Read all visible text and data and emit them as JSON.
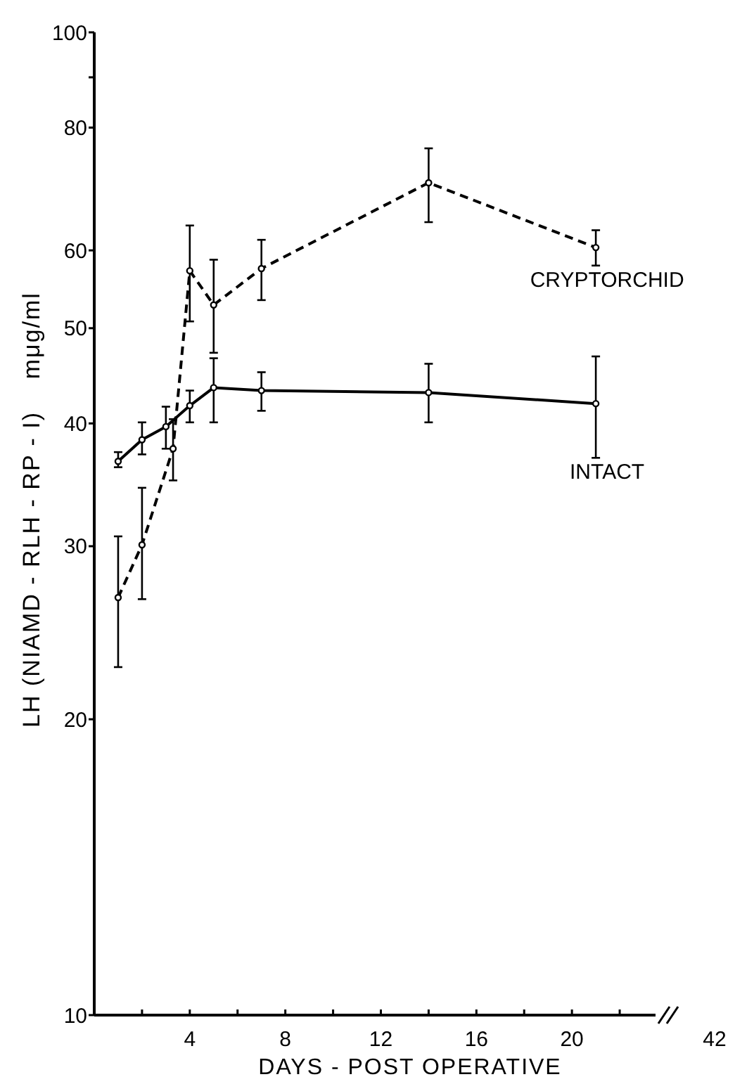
{
  "chart_data": {
    "type": "line",
    "xlabel": "DAYS - POST OPERATIVE",
    "ylabel": "LH (NIAMD - RLH - RP - I)    mμg/ml",
    "log": "y",
    "ylim": [
      10,
      100
    ],
    "yticks": [
      10,
      20,
      30,
      40,
      50,
      60,
      80,
      {
        "value": 90,
        "label": null
      },
      100
    ],
    "xlim": [
      0,
      23.5
    ],
    "xticks": [
      {
        "value": 2,
        "label": null
      },
      4,
      {
        "value": 6,
        "label": null
      },
      8,
      {
        "value": 10,
        "label": null
      },
      12,
      {
        "value": 14,
        "label": null
      },
      16,
      {
        "value": 18,
        "label": null
      },
      20,
      {
        "value": 22,
        "label": null
      }
    ],
    "annotations": [
      "42"
    ],
    "grid": false,
    "legend": false,
    "marker": "circle",
    "series": [
      {
        "name": "CRYPTORCHID",
        "color": "#000000",
        "line_style": "dashed",
        "x": [
          1,
          2,
          3.3,
          4,
          5,
          7,
          14,
          21
        ],
        "values": [
          26.6,
          30.1,
          37.7,
          57.2,
          52.8,
          57.5,
          70.3,
          60.4
        ],
        "errors": [
          [
            22.6,
            30.7
          ],
          [
            26.5,
            34.4
          ],
          [
            35.0,
            40.4
          ],
          [
            50.8,
            63.6
          ],
          [
            47.2,
            58.7
          ],
          [
            53.4,
            61.5
          ],
          [
            64.1,
            76.2
          ],
          [
            57.9,
            62.9
          ]
        ]
      },
      {
        "name": "INTACT",
        "color": "#000000",
        "line_style": "solid",
        "x": [
          1,
          2,
          3,
          4,
          5,
          7,
          14,
          21
        ],
        "values": [
          36.6,
          38.5,
          39.7,
          41.7,
          43.5,
          43.2,
          43.0,
          41.9
        ],
        "errors": [
          [
            36.1,
            37.4
          ],
          [
            37.2,
            40.1
          ],
          [
            37.7,
            41.6
          ],
          [
            40.1,
            43.2
          ],
          [
            40.1,
            46.6
          ],
          [
            41.2,
            45.1
          ],
          [
            40.1,
            46.0
          ],
          [
            36.9,
            46.8
          ]
        ]
      }
    ]
  }
}
